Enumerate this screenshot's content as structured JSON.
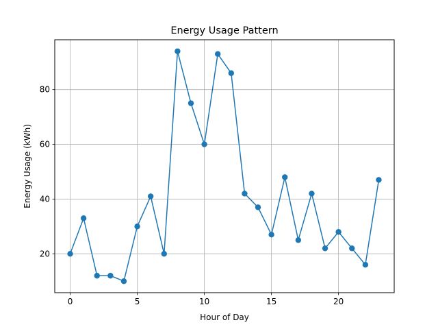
{
  "chart_data": {
    "type": "line",
    "title": "Energy Usage Pattern",
    "xlabel": "Hour of Day",
    "ylabel": "Energy Usage (kWh)",
    "xlim": [
      -1.15,
      24.15
    ],
    "ylim": [
      5.8,
      98.2
    ],
    "xticks": [
      0,
      5,
      10,
      15,
      20
    ],
    "yticks": [
      20,
      40,
      60,
      80
    ],
    "grid": true,
    "marker": "circle",
    "color": "#1f77b4",
    "x": [
      0,
      1,
      2,
      3,
      4,
      5,
      6,
      7,
      8,
      9,
      10,
      11,
      12,
      13,
      14,
      15,
      16,
      17,
      18,
      19,
      20,
      21,
      22,
      23
    ],
    "y": [
      20,
      33,
      12,
      12,
      10,
      30,
      41,
      20,
      94,
      75,
      60,
      93,
      86,
      42,
      37,
      27,
      48,
      25,
      42,
      22,
      28,
      22,
      16,
      47
    ]
  }
}
